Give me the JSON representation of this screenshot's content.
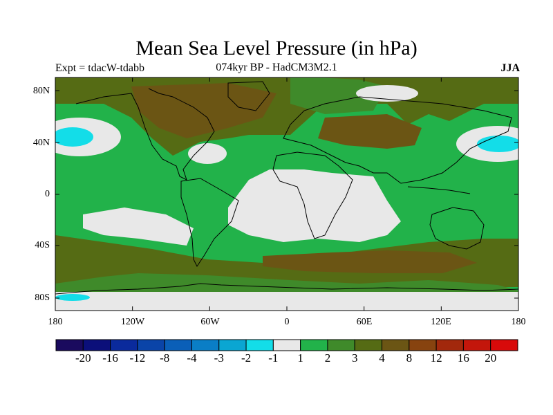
{
  "title": "Mean Sea Level Pressure (in hPa)",
  "experiment": "Expt = tdacW-tdabb",
  "subtitle": "074kyr BP - HadCM3M2.1",
  "season": "JJA",
  "lat_labels": [
    "80N",
    "40N",
    "0",
    "40S",
    "80S"
  ],
  "lon_labels": [
    "180",
    "120W",
    "60W",
    "0",
    "60E",
    "120E",
    "180"
  ],
  "colorbar": {
    "labels": [
      "-20",
      "-16",
      "-12",
      "-8",
      "-4",
      "-3",
      "-2",
      "-1",
      "1",
      "2",
      "3",
      "4",
      "8",
      "12",
      "16",
      "20"
    ],
    "colors": [
      "#1a0a5e",
      "#0b0f7a",
      "#0a2a9c",
      "#0a44a8",
      "#0a5fb8",
      "#0a7ec6",
      "#0aa6d2",
      "#13dde8",
      "#e8e8e8",
      "#22b24a",
      "#3f8a2a",
      "#556b14",
      "#6b5514",
      "#87430f",
      "#a2280c",
      "#c3160b",
      "#d80a0a"
    ]
  },
  "colors": {
    "neutral": "#e8e8e8",
    "light_green": "#22b24a",
    "mid_green": "#3f8a2a",
    "olive": "#556b14",
    "brown": "#6b5514",
    "dark_brown": "#87430f",
    "cyan": "#13dde8",
    "blue": "#0aa6d2"
  }
}
